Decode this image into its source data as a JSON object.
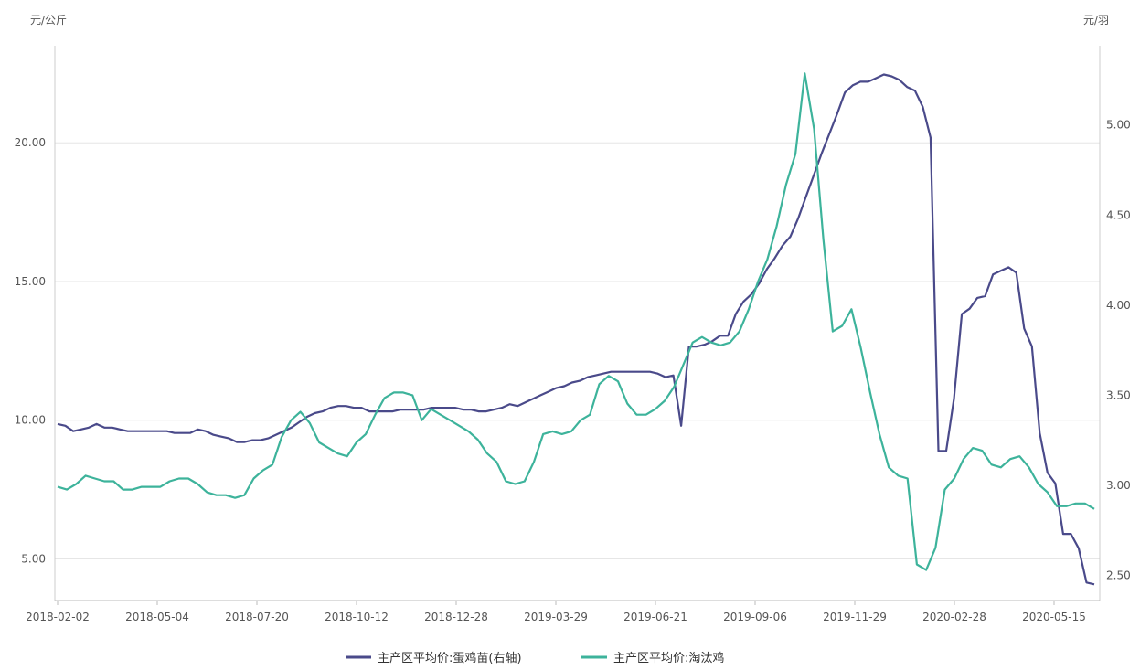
{
  "chart_data": {
    "type": "line",
    "left_unit": "元/公斤",
    "right_unit": "元/羽",
    "x_tick_labels": [
      "2018-02-02",
      "2018-05-04",
      "2018-07-20",
      "2018-10-12",
      "2018-12-28",
      "2019-03-29",
      "2019-06-21",
      "2019-09-06",
      "2019-11-29",
      "2020-02-28",
      "2020-05-15"
    ],
    "left_axis": {
      "ticks": [
        "5.00",
        "10.00",
        "15.00",
        "20.00"
      ],
      "ylim": [
        3.5,
        23.5
      ]
    },
    "right_axis": {
      "ticks": [
        "2.50",
        "3.00",
        "3.50",
        "4.00",
        "4.50",
        "5.00"
      ],
      "ylim": [
        2.36,
        5.44
      ]
    },
    "grid": "horizontal",
    "legend_position": "bottom-center",
    "colors": {
      "series_right": "#4a4a8a",
      "series_left": "#3db39b"
    },
    "series": [
      {
        "name": "主产区平均价:蛋鸡苗(右轴)",
        "axis": "right",
        "values": [
          3.34,
          3.33,
          3.3,
          3.31,
          3.32,
          3.34,
          3.32,
          3.32,
          3.31,
          3.3,
          3.3,
          3.3,
          3.3,
          3.3,
          3.3,
          3.29,
          3.29,
          3.29,
          3.31,
          3.3,
          3.28,
          3.27,
          3.26,
          3.24,
          3.24,
          3.25,
          3.25,
          3.26,
          3.28,
          3.3,
          3.32,
          3.35,
          3.38,
          3.4,
          3.41,
          3.43,
          3.44,
          3.44,
          3.43,
          3.43,
          3.41,
          3.41,
          3.41,
          3.41,
          3.42,
          3.42,
          3.42,
          3.42,
          3.43,
          3.43,
          3.43,
          3.43,
          3.42,
          3.42,
          3.41,
          3.41,
          3.42,
          3.43,
          3.45,
          3.44,
          3.46,
          3.48,
          3.5,
          3.52,
          3.54,
          3.55,
          3.57,
          3.58,
          3.6,
          3.61,
          3.62,
          3.63,
          3.63,
          3.63,
          3.63,
          3.63,
          3.63,
          3.62,
          3.6,
          3.61,
          3.33,
          3.77,
          3.77,
          3.78,
          3.8,
          3.83,
          3.83,
          3.95,
          4.02,
          4.06,
          4.12,
          4.2,
          4.26,
          4.33,
          4.38,
          4.48,
          4.6,
          4.72,
          4.84,
          4.95,
          5.06,
          5.18,
          5.22,
          5.24,
          5.24,
          5.26,
          5.28,
          5.27,
          5.25,
          5.21,
          5.19,
          5.1,
          4.93,
          3.19,
          3.19,
          3.48,
          3.95,
          3.98,
          4.04,
          4.05,
          4.17,
          4.19,
          4.21,
          4.18,
          3.87,
          3.77,
          3.29,
          3.07,
          3.01,
          2.73,
          2.73,
          2.65,
          2.46,
          2.45
        ]
      },
      {
        "name": "主产区平均价:淘汰鸡",
        "axis": "left",
        "values": [
          7.6,
          7.5,
          7.7,
          8.0,
          7.9,
          7.8,
          7.8,
          7.5,
          7.5,
          7.6,
          7.6,
          7.6,
          7.8,
          7.9,
          7.9,
          7.7,
          7.4,
          7.3,
          7.3,
          7.2,
          7.3,
          7.9,
          8.2,
          8.4,
          9.4,
          10.0,
          10.3,
          9.9,
          9.2,
          9.0,
          8.8,
          8.7,
          9.2,
          9.5,
          10.2,
          10.8,
          11.0,
          11.0,
          10.9,
          10.0,
          10.4,
          10.2,
          10.0,
          9.8,
          9.6,
          9.3,
          8.8,
          8.5,
          7.8,
          7.7,
          7.8,
          8.5,
          9.5,
          9.6,
          9.5,
          9.6,
          10.0,
          10.2,
          11.3,
          11.6,
          11.4,
          10.6,
          10.2,
          10.2,
          10.4,
          10.7,
          11.2,
          12.0,
          12.8,
          13.0,
          12.8,
          12.7,
          12.8,
          13.2,
          14.0,
          15.0,
          15.8,
          17.0,
          18.5,
          19.6,
          22.5,
          20.5,
          16.5,
          13.2,
          13.4,
          14.0,
          12.6,
          11.0,
          9.5,
          8.3,
          8.0,
          7.9,
          4.8,
          4.6,
          5.4,
          7.5,
          7.9,
          8.6,
          9.0,
          8.9,
          8.4,
          8.3,
          8.6,
          8.7,
          8.3,
          7.7,
          7.4,
          6.9,
          6.9,
          7.0,
          7.0,
          6.8
        ]
      }
    ]
  }
}
